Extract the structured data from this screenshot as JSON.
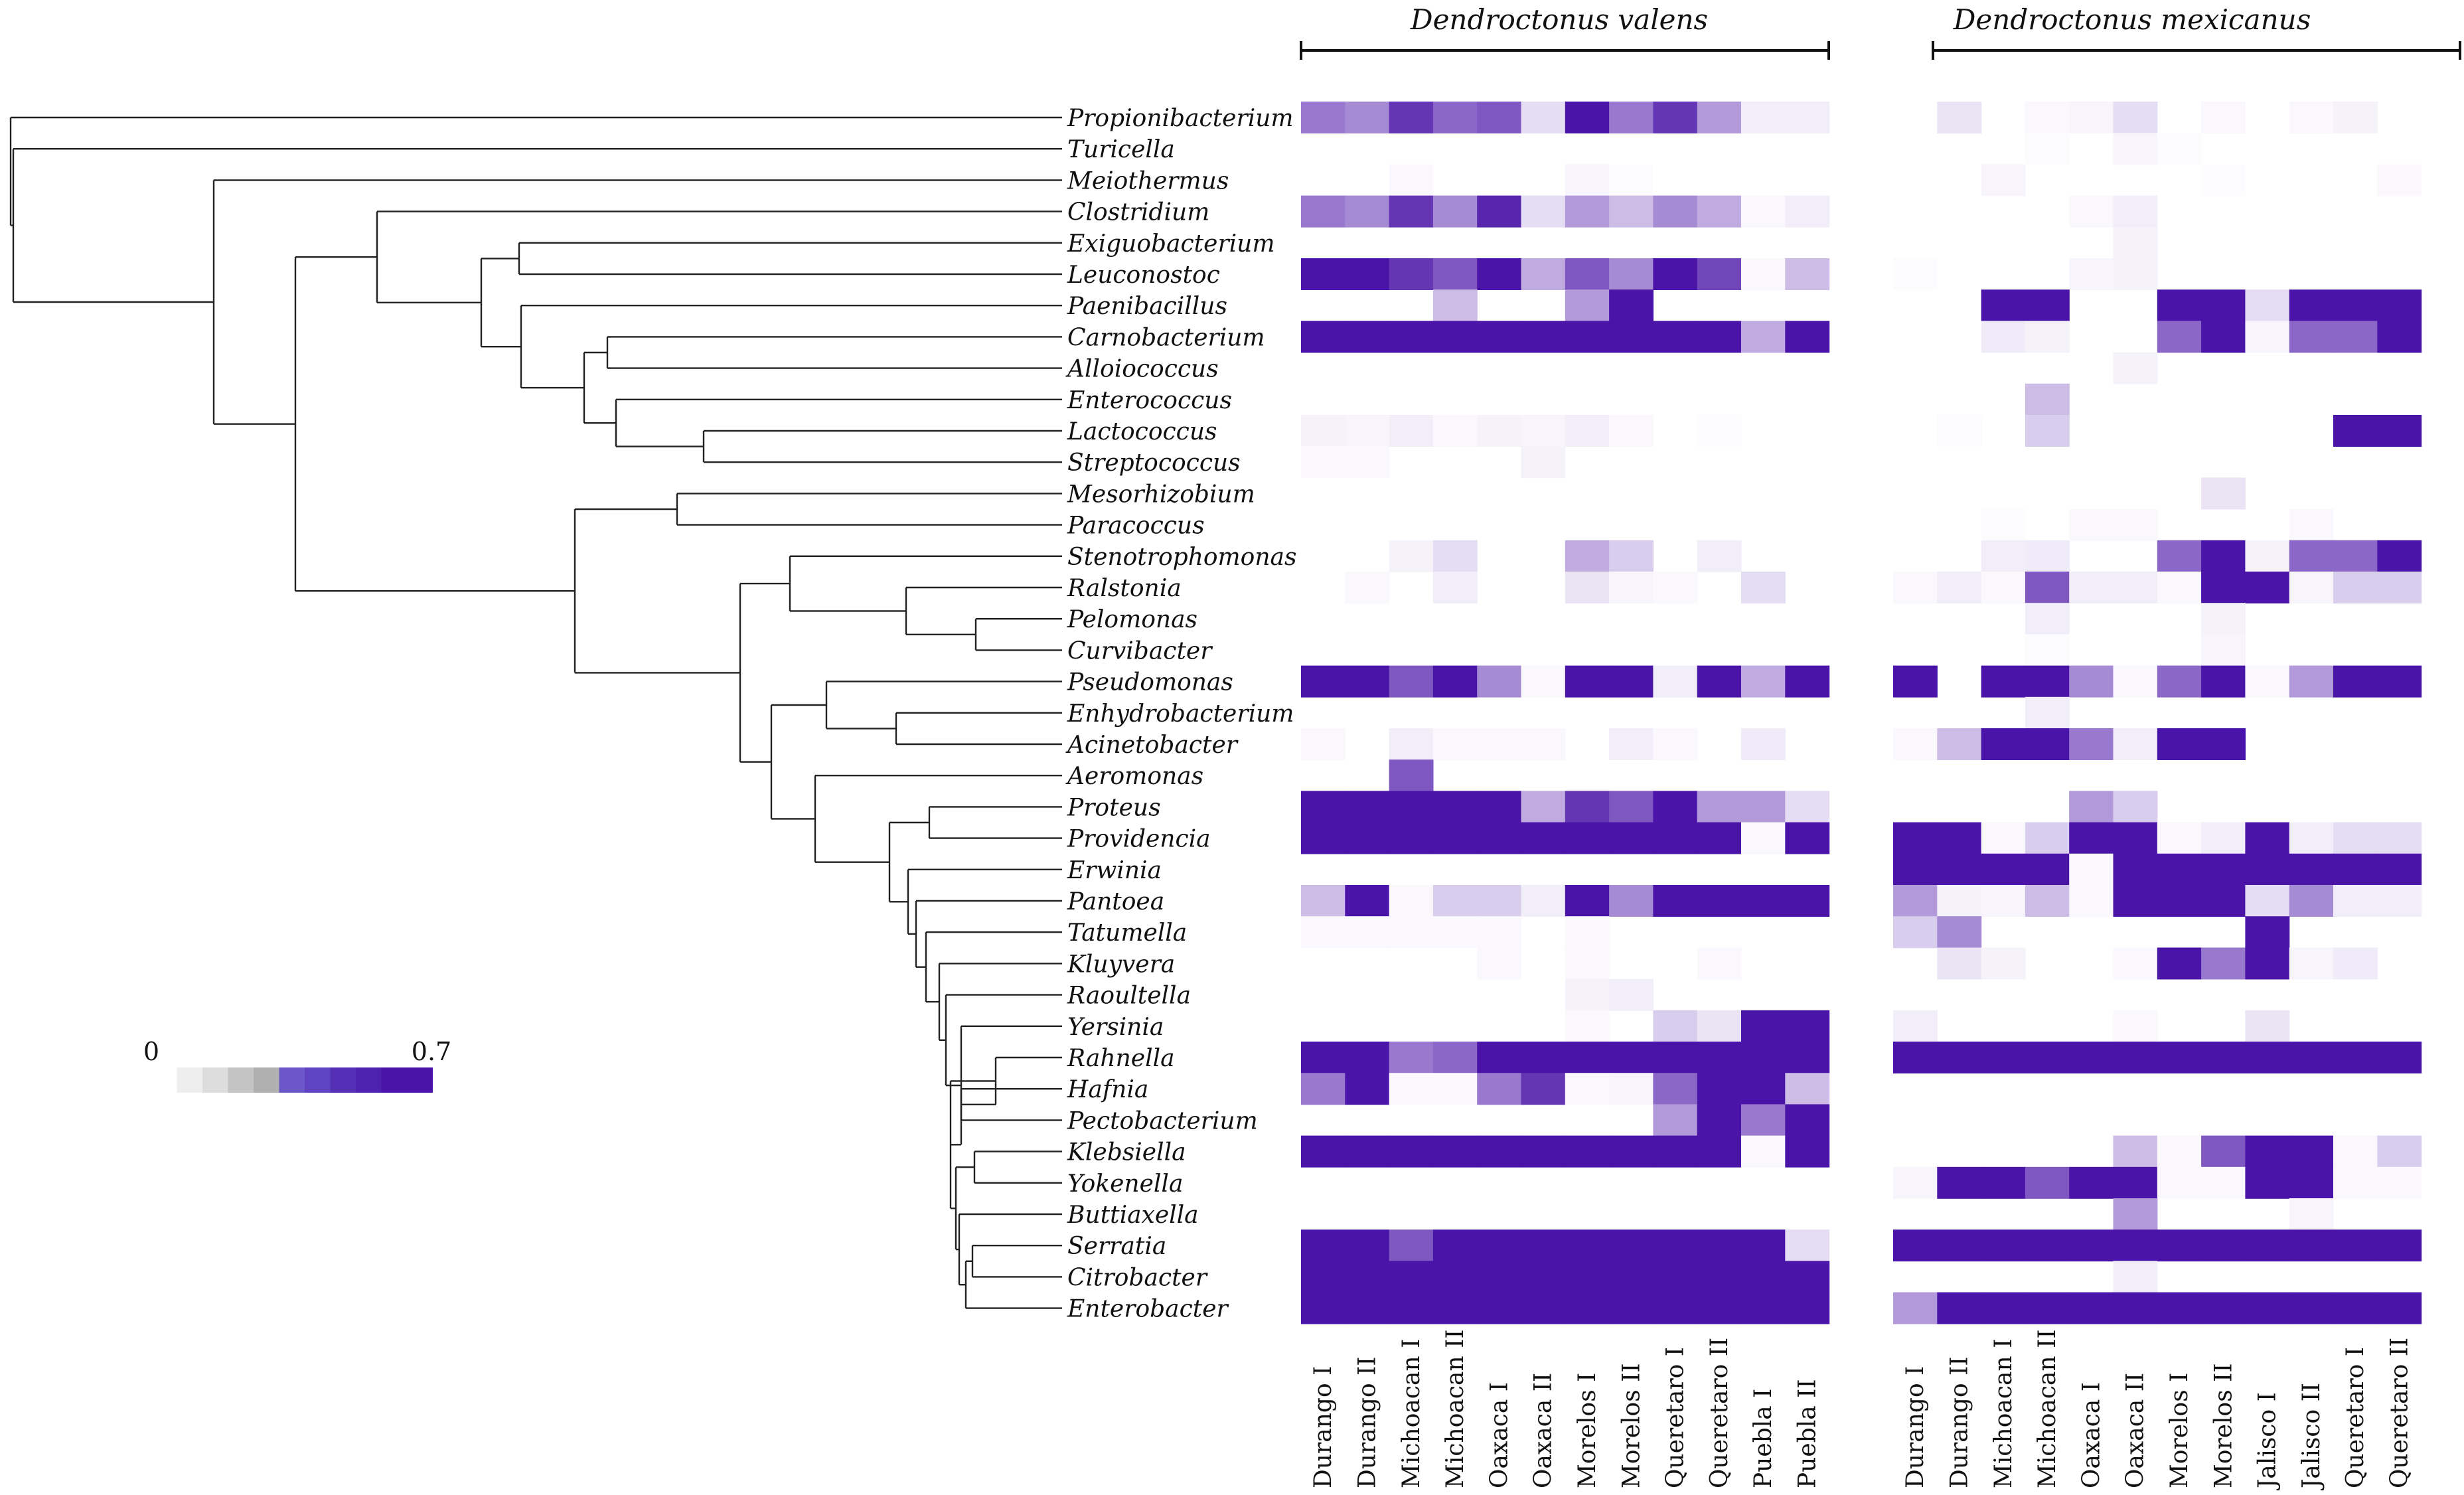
{
  "chart_data": {
    "type": "heatmap",
    "title": "",
    "groups": [
      {
        "name": "Dendroctonus valens",
        "sites": [
          "Durango I",
          "Durango II",
          "Michoacan I",
          "Michoacan II",
          "Oaxaca I",
          "Oaxaca II",
          "Morelos I",
          "Morelos II",
          "Queretaro I",
          "Queretaro II",
          "Puebla I",
          "Puebla II"
        ]
      },
      {
        "name": "Dendroctonus mexicanus",
        "sites": [
          "Durango I",
          "Durango II",
          "Michoacan I",
          "Michoacan II",
          "Oaxaca I",
          "Oaxaca II",
          "Morelos I",
          "Morelos II",
          "Jalisco I",
          "Jalisco II",
          "Queretaro I",
          "Queretaro II"
        ]
      }
    ],
    "genera": [
      "Propionibacterium",
      "Turicella",
      "Meiothermus",
      "Clostridium",
      "Exiguobacterium",
      "Leuconostoc",
      "Paenibacillus",
      "Carnobacterium",
      "Alloiococcus",
      "Enterococcus",
      "Lactococcus",
      "Streptococcus",
      "Mesorhizobium",
      "Paracoccus",
      "Stenotrophomonas",
      "Ralstonia",
      "Pelomonas",
      "Curvibacter",
      "Pseudomonas",
      "Enhydrobacterium",
      "Acinetobacter",
      "Aeromonas",
      "Proteus",
      "Providencia",
      "Erwinia",
      "Pantoea",
      "Tatumella",
      "Kluyvera",
      "Raoultella",
      "Yersinia",
      "Rahnella",
      "Hafnia",
      "Pectobacterium",
      "Klebsiella",
      "Yokenella",
      "Buttiaxella",
      "Serratia",
      "Citrobacter",
      "Enterobacter"
    ],
    "values_valens": [
      [
        0.4,
        0.35,
        0.6,
        0.45,
        0.5,
        0.1,
        0.7,
        0.4,
        0.6,
        0.3,
        0.05,
        0.05
      ],
      [
        0,
        0,
        0,
        0,
        0,
        0,
        0,
        0,
        0,
        0,
        0,
        0
      ],
      [
        0,
        0,
        0.02,
        0,
        0,
        0,
        0.03,
        0.01,
        0,
        0,
        0,
        0
      ],
      [
        0.4,
        0.35,
        0.6,
        0.35,
        0.65,
        0.1,
        0.3,
        0.2,
        0.35,
        0.25,
        0.02,
        0.05
      ],
      [
        0,
        0,
        0,
        0,
        0,
        0,
        0,
        0,
        0,
        0,
        0,
        0
      ],
      [
        0.7,
        0.7,
        0.6,
        0.5,
        0.7,
        0.25,
        0.5,
        0.35,
        0.7,
        0.55,
        0.02,
        0.2
      ],
      [
        0,
        0,
        0,
        0.2,
        0,
        0,
        0.3,
        0.7,
        0,
        0,
        0,
        0
      ],
      [
        0.7,
        0.7,
        0.7,
        0.7,
        0.7,
        0.7,
        0.7,
        0.7,
        0.7,
        0.7,
        0.25,
        0.7
      ],
      [
        0,
        0,
        0,
        0,
        0,
        0,
        0,
        0,
        0,
        0,
        0,
        0
      ],
      [
        0,
        0,
        0,
        0,
        0,
        0,
        0,
        0,
        0,
        0,
        0,
        0
      ],
      [
        0.04,
        0.03,
        0.05,
        0.02,
        0.04,
        0.03,
        0.05,
        0.02,
        0,
        0.01,
        0,
        0
      ],
      [
        0.02,
        0.02,
        0,
        0,
        0,
        0.04,
        0,
        0,
        0,
        0,
        0,
        0
      ],
      [
        0,
        0,
        0,
        0,
        0,
        0,
        0,
        0,
        0,
        0,
        0,
        0
      ],
      [
        0,
        0,
        0,
        0,
        0,
        0,
        0,
        0,
        0,
        0,
        0,
        0
      ],
      [
        0,
        0,
        0.04,
        0.1,
        0,
        0,
        0.25,
        0.15,
        0,
        0.05,
        0,
        0
      ],
      [
        0,
        0.02,
        0,
        0.05,
        0,
        0,
        0.08,
        0.03,
        0.02,
        0,
        0.1,
        0
      ],
      [
        0,
        0,
        0,
        0,
        0,
        0,
        0,
        0,
        0,
        0,
        0,
        0
      ],
      [
        0,
        0,
        0,
        0,
        0,
        0,
        0,
        0,
        0,
        0,
        0,
        0
      ],
      [
        0.7,
        0.7,
        0.5,
        0.7,
        0.35,
        0.02,
        0.7,
        0.7,
        0.05,
        0.7,
        0.25,
        0.7
      ],
      [
        0,
        0,
        0,
        0,
        0,
        0,
        0,
        0,
        0,
        0,
        0,
        0
      ],
      [
        0.02,
        0,
        0.05,
        0.02,
        0.02,
        0.02,
        0,
        0.05,
        0.02,
        0,
        0.06,
        0
      ],
      [
        0,
        0,
        0.5,
        0,
        0,
        0,
        0,
        0,
        0,
        0,
        0,
        0
      ],
      [
        0.7,
        0.7,
        0.7,
        0.7,
        0.7,
        0.25,
        0.6,
        0.5,
        0.7,
        0.3,
        0.3,
        0.1
      ],
      [
        0.7,
        0.7,
        0.7,
        0.7,
        0.7,
        0.7,
        0.7,
        0.7,
        0.7,
        0.7,
        0.02,
        0.7
      ],
      [
        0,
        0,
        0,
        0,
        0,
        0,
        0,
        0,
        0,
        0,
        0,
        0
      ],
      [
        0.2,
        0.7,
        0.02,
        0.15,
        0.15,
        0.05,
        0.7,
        0.35,
        0.7,
        0.7,
        0.7,
        0.7
      ],
      [
        0.02,
        0.02,
        0.02,
        0.02,
        0.02,
        0,
        0.02,
        0,
        0,
        0,
        0,
        0
      ],
      [
        0,
        0,
        0,
        0,
        0.02,
        0,
        0.02,
        0,
        0,
        0.02,
        0,
        0
      ],
      [
        0,
        0,
        0,
        0,
        0,
        0,
        0.04,
        0.05,
        0,
        0,
        0,
        0
      ],
      [
        0,
        0,
        0,
        0,
        0,
        0,
        0.02,
        0,
        0.15,
        0.08,
        0.7,
        0.7
      ],
      [
        0.7,
        0.7,
        0.4,
        0.45,
        0.7,
        0.7,
        0.7,
        0.7,
        0.7,
        0.7,
        0.7,
        0.7
      ],
      [
        0.4,
        0.7,
        0.02,
        0.02,
        0.4,
        0.6,
        0.02,
        0.03,
        0.45,
        0.7,
        0.7,
        0.2
      ],
      [
        0,
        0,
        0,
        0,
        0,
        0,
        0,
        0,
        0.3,
        0.7,
        0.4,
        0.7
      ],
      [
        0.7,
        0.7,
        0.7,
        0.7,
        0.7,
        0.7,
        0.7,
        0.7,
        0.7,
        0.7,
        0.02,
        0.7
      ],
      [
        0,
        0,
        0,
        0,
        0,
        0,
        0,
        0,
        0,
        0,
        0,
        0
      ],
      [
        0,
        0,
        0,
        0,
        0,
        0,
        0,
        0,
        0,
        0,
        0,
        0
      ],
      [
        0.7,
        0.7,
        0.5,
        0.7,
        0.7,
        0.7,
        0.7,
        0.7,
        0.7,
        0.7,
        0.7,
        0.1
      ],
      [
        0.7,
        0.7,
        0.7,
        0.7,
        0.7,
        0.7,
        0.7,
        0.7,
        0.7,
        0.7,
        0.7,
        0.7
      ],
      [
        0.7,
        0.7,
        0.7,
        0.7,
        0.7,
        0.7,
        0.7,
        0.7,
        0.7,
        0.7,
        0.7,
        0.7
      ]
    ],
    "values_mexicanus": [
      [
        0,
        0.08,
        0,
        0.02,
        0.03,
        0.1,
        0,
        0.02,
        0,
        0.02,
        0.04,
        0
      ],
      [
        0,
        0,
        0,
        0.01,
        0,
        0.03,
        0.01,
        0,
        0,
        0,
        0,
        0
      ],
      [
        0,
        0,
        0.03,
        0,
        0,
        0,
        0,
        0.01,
        0,
        0,
        0,
        0.02
      ],
      [
        0,
        0,
        0,
        0,
        0.02,
        0.05,
        0,
        0,
        0,
        0,
        0,
        0
      ],
      [
        0,
        0,
        0,
        0,
        0,
        0.04,
        0,
        0,
        0,
        0,
        0,
        0
      ],
      [
        0.01,
        0,
        0,
        0,
        0.03,
        0.04,
        0,
        0,
        0,
        0,
        0,
        0
      ],
      [
        0,
        0,
        0.7,
        0.7,
        0,
        0,
        0.7,
        0.7,
        0.1,
        0.7,
        0.7,
        0.7
      ],
      [
        0,
        0,
        0.06,
        0.04,
        0,
        0,
        0.45,
        0.7,
        0.03,
        0.45,
        0.45,
        0.7
      ],
      [
        0,
        0,
        0,
        0,
        0,
        0.04,
        0,
        0,
        0,
        0,
        0,
        0
      ],
      [
        0,
        0,
        0,
        0.2,
        0,
        0,
        0,
        0,
        0,
        0,
        0,
        0
      ],
      [
        0,
        0.01,
        0,
        0.15,
        0,
        0,
        0,
        0,
        0,
        0,
        0.7,
        0.7
      ],
      [
        0,
        0,
        0,
        0,
        0,
        0,
        0,
        0,
        0,
        0,
        0,
        0
      ],
      [
        0,
        0,
        0,
        0,
        0,
        0,
        0,
        0.08,
        0,
        0,
        0,
        0
      ],
      [
        0,
        0,
        0.01,
        0,
        0.02,
        0.02,
        0,
        0,
        0,
        0.02,
        0,
        0
      ],
      [
        0,
        0,
        0.05,
        0.06,
        0,
        0,
        0.45,
        0.7,
        0.04,
        0.45,
        0.45,
        0.7
      ],
      [
        0.02,
        0.05,
        0.02,
        0.5,
        0.05,
        0.05,
        0.02,
        0.7,
        0.7,
        0.03,
        0.15,
        0.15
      ],
      [
        0,
        0,
        0,
        0.05,
        0,
        0,
        0,
        0.04,
        0,
        0,
        0,
        0
      ],
      [
        0,
        0,
        0,
        0.01,
        0,
        0,
        0,
        0.03,
        0,
        0,
        0,
        0
      ],
      [
        0.7,
        0,
        0.7,
        0.7,
        0.35,
        0.02,
        0.45,
        0.7,
        0.02,
        0.3,
        0.7,
        0.7
      ],
      [
        0,
        0,
        0,
        0.05,
        0,
        0,
        0,
        0,
        0,
        0,
        0,
        0
      ],
      [
        0.02,
        0.2,
        0.7,
        0.7,
        0.4,
        0.05,
        0.7,
        0.7,
        0,
        0,
        0,
        0
      ],
      [
        0,
        0,
        0,
        0,
        0,
        0,
        0,
        0,
        0,
        0,
        0,
        0
      ],
      [
        0,
        0,
        0,
        0,
        0.3,
        0.15,
        0,
        0,
        0,
        0,
        0,
        0
      ],
      [
        0.7,
        0.7,
        0.02,
        0.15,
        0.7,
        0.7,
        0.02,
        0.05,
        0.7,
        0.05,
        0.1,
        0.1
      ],
      [
        0.7,
        0.7,
        0.7,
        0.7,
        0.02,
        0.7,
        0.7,
        0.7,
        0.7,
        0.7,
        0.7,
        0.7
      ],
      [
        0.3,
        0.04,
        0.03,
        0.2,
        0.02,
        0.7,
        0.7,
        0.7,
        0.1,
        0.35,
        0.05,
        0.05
      ],
      [
        0.15,
        0.35,
        0,
        0,
        0,
        0,
        0,
        0,
        0.7,
        0,
        0,
        0
      ],
      [
        0,
        0.08,
        0.04,
        0,
        0,
        0.02,
        0.7,
        0.4,
        0.7,
        0.03,
        0.06,
        0
      ],
      [
        0,
        0,
        0,
        0,
        0,
        0,
        0,
        0,
        0,
        0,
        0,
        0
      ],
      [
        0.05,
        0,
        0,
        0,
        0,
        0.02,
        0,
        0,
        0.08,
        0,
        0,
        0
      ],
      [
        0.7,
        0.7,
        0.7,
        0.7,
        0.7,
        0.7,
        0.7,
        0.7,
        0.7,
        0.7,
        0.7,
        0.7
      ],
      [
        0,
        0,
        0,
        0,
        0,
        0,
        0,
        0,
        0,
        0,
        0,
        0
      ],
      [
        0,
        0,
        0,
        0,
        0,
        0,
        0,
        0,
        0,
        0,
        0,
        0
      ],
      [
        0,
        0,
        0,
        0,
        0,
        0.2,
        0.02,
        0.5,
        0.7,
        0.7,
        0.02,
        0.15
      ],
      [
        0.03,
        0.7,
        0.7,
        0.5,
        0.7,
        0.7,
        0.02,
        0.02,
        0.7,
        0.7,
        0.02,
        0.02
      ],
      [
        0,
        0,
        0,
        0,
        0,
        0.3,
        0,
        0,
        0,
        0.03,
        0,
        0
      ],
      [
        0.7,
        0.7,
        0.7,
        0.7,
        0.7,
        0.7,
        0.7,
        0.7,
        0.7,
        0.7,
        0.7,
        0.7
      ],
      [
        0,
        0,
        0,
        0,
        0,
        0.05,
        0,
        0,
        0,
        0,
        0,
        0
      ],
      [
        0.3,
        0.7,
        0.7,
        0.7,
        0.7,
        0.7,
        0.7,
        0.7,
        0.7,
        0.7,
        0.7,
        0.7
      ]
    ],
    "colorbar": {
      "min": 0,
      "max": 0.7,
      "min_label": "0",
      "max_label": "0.7",
      "low_color": "#ffffff",
      "high_color": "#4b14a8"
    },
    "tree": "neighbor-joining style cladogram of bacterial genera (left)"
  }
}
